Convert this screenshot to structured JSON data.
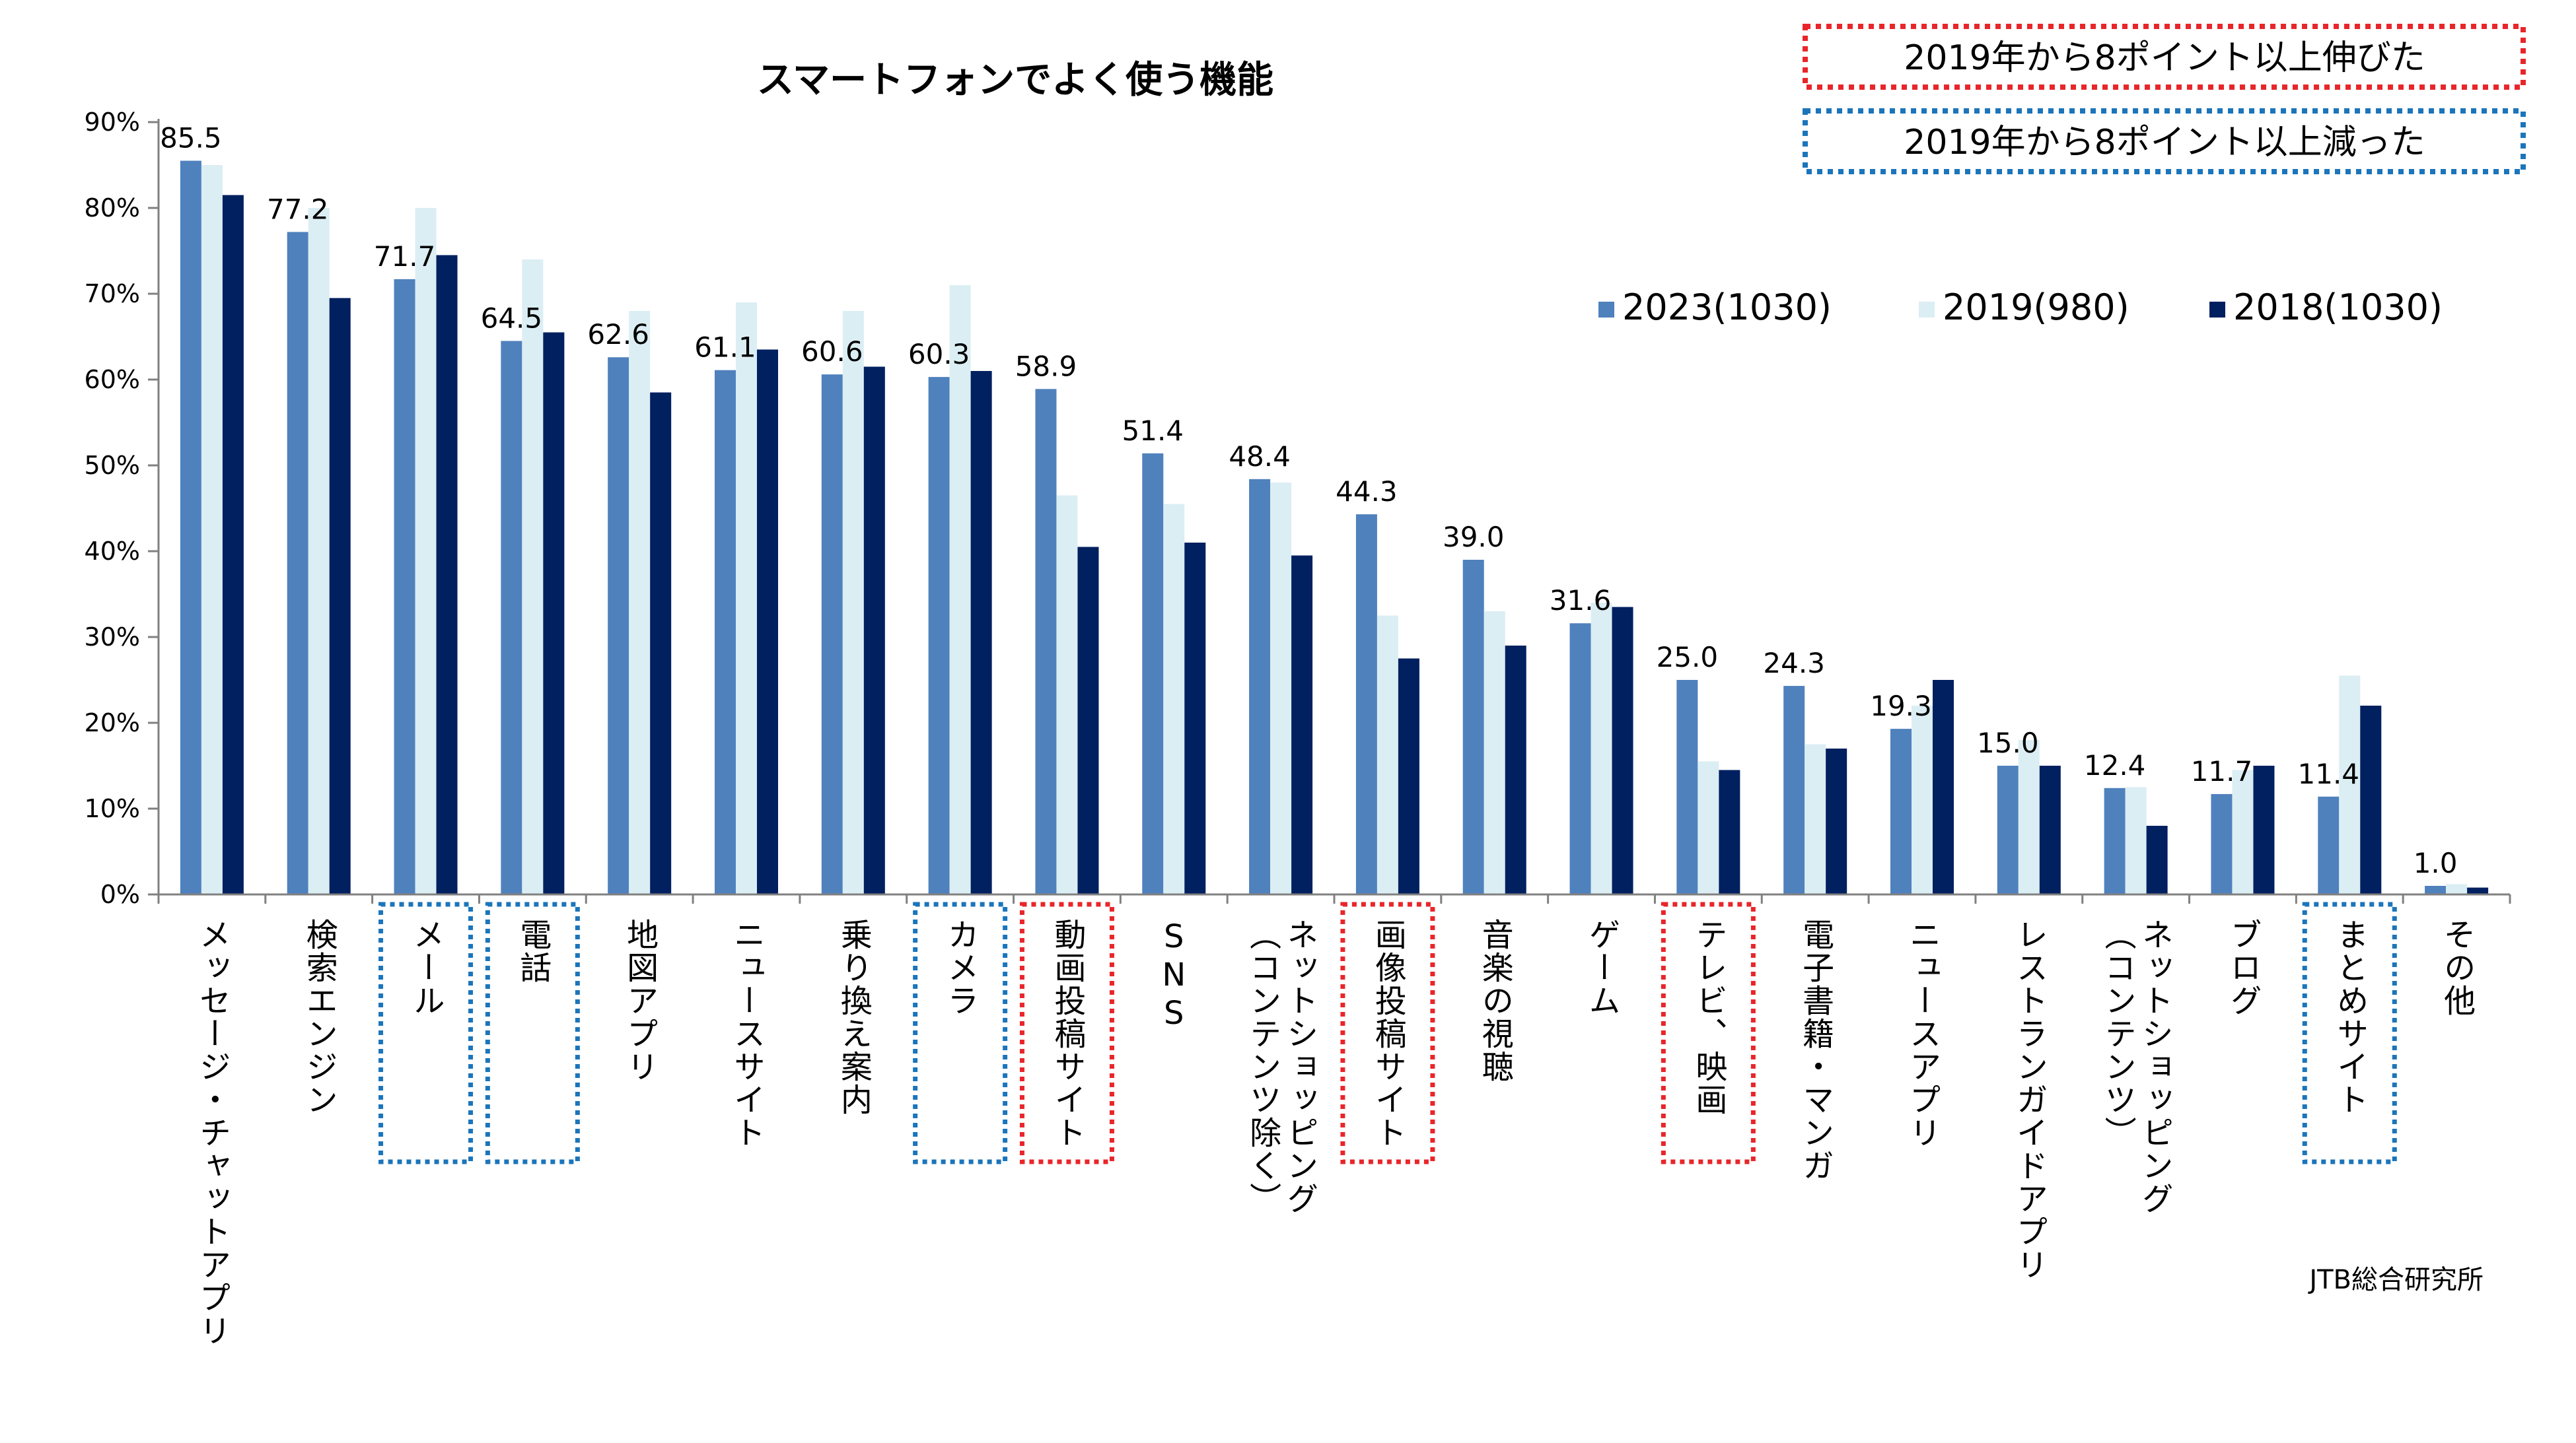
{
  "chart_data": {
    "type": "bar",
    "title": "スマートフォンでよく使う機能",
    "source": "JTB総合研究所",
    "categories": [
      "メッセージ・チャットアプリ",
      "検索エンジン",
      "メール",
      "電話",
      "地図アプリ",
      "ニュースサイト",
      "乗り換え案内",
      "カメラ",
      "動画投稿サイト",
      "SNS",
      "ネットショッピング\n（コンテンツ除く）",
      "画像投稿サイト",
      "音楽の視聴",
      "ゲーム",
      "テレビ、映画",
      "電子書籍・マンガ",
      "ニュースアプリ",
      "レストランガイドアプリ",
      "ネットショッピング\n（コンテンツ）",
      "ブログ",
      "まとめサイト",
      "その他"
    ],
    "series": [
      {
        "name": "2023(1030)",
        "color": "#4f81bd",
        "values": [
          85.5,
          77.2,
          71.7,
          64.5,
          62.6,
          61.1,
          60.6,
          60.3,
          58.9,
          51.4,
          48.4,
          44.3,
          39.0,
          31.6,
          25.0,
          24.3,
          19.3,
          15.0,
          12.4,
          11.7,
          11.4,
          1.0
        ]
      },
      {
        "name": "2019(980)",
        "color": "#dbeef4",
        "values": [
          85,
          80,
          80,
          74,
          68,
          69,
          68,
          71,
          46.5,
          45.5,
          48,
          32.5,
          33,
          34,
          15.5,
          17.5,
          22,
          18,
          12.5,
          14.5,
          25.5,
          1.2
        ]
      },
      {
        "name": "2018(1030)",
        "color": "#002060",
        "values": [
          81.5,
          69.5,
          74.5,
          65.5,
          58.5,
          63.5,
          61.5,
          61,
          40.5,
          41,
          39.5,
          27.5,
          29,
          33.5,
          14.5,
          17,
          25,
          15,
          8,
          15,
          22,
          0.8
        ]
      }
    ],
    "data_labels": [
      "85.5",
      "77.2",
      "71.7",
      "64.5",
      "62.6",
      "61.1",
      "60.6",
      "60.3",
      "58.9",
      "51.4",
      "48.4",
      "44.3",
      "39.0",
      "31.6",
      "25.0",
      "24.3",
      "19.3",
      "15.0",
      "12.4",
      "11.7",
      "11.4",
      "1.0"
    ],
    "yticks": [
      "0%",
      "10%",
      "20%",
      "30%",
      "40%",
      "50%",
      "60%",
      "70%",
      "80%",
      "90%"
    ],
    "ylim": [
      0,
      90
    ],
    "grid": false,
    "legend_position": "top-right",
    "highlights": {
      "increased_label": "2019年から8ポイント以上伸びた",
      "increased_color": "#e8262a",
      "increased_categories": [
        8,
        11,
        14
      ],
      "decreased_label": "2019年から8ポイント以上減った",
      "decreased_color": "#1b75bb",
      "decreased_categories": [
        2,
        3,
        7,
        20
      ]
    }
  }
}
